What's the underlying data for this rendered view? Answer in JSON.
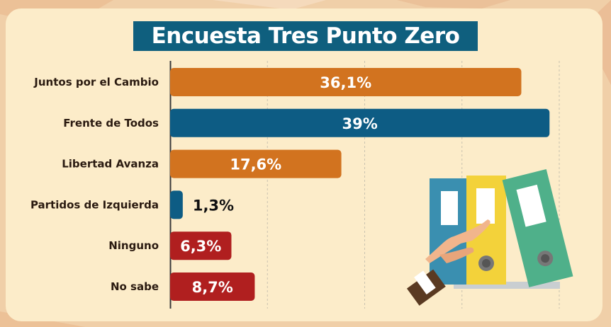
{
  "title": "Encuesta Tres Punto Zero",
  "colors": {
    "orange": "#d2731f",
    "blue": "#0d5c84",
    "red": "#b01f1f",
    "panel": "#fcecc9",
    "title_bg": "#0f5f7e"
  },
  "chart_data": {
    "type": "bar",
    "orientation": "horizontal",
    "categories": [
      "Juntos por el Cambio",
      "Frente de Todos",
      "Libertad Avanza",
      "Partidos de Izquierda",
      "Ninguno",
      "No sabe"
    ],
    "values": [
      36.1,
      39,
      17.6,
      1.3,
      6.3,
      8.7
    ],
    "value_labels": [
      "36,1%",
      "39%",
      "17,6%",
      "1,3%",
      "6,3%",
      "8,7%"
    ],
    "bar_colors": [
      "#d2731f",
      "#0d5c84",
      "#d2731f",
      "#0d5c84",
      "#b01f1f",
      "#b01f1f"
    ],
    "xlim": [
      0,
      40
    ],
    "grid": true,
    "legend": "none"
  },
  "illustration": {
    "icon": "binders-with-pointing-hand-icon"
  }
}
